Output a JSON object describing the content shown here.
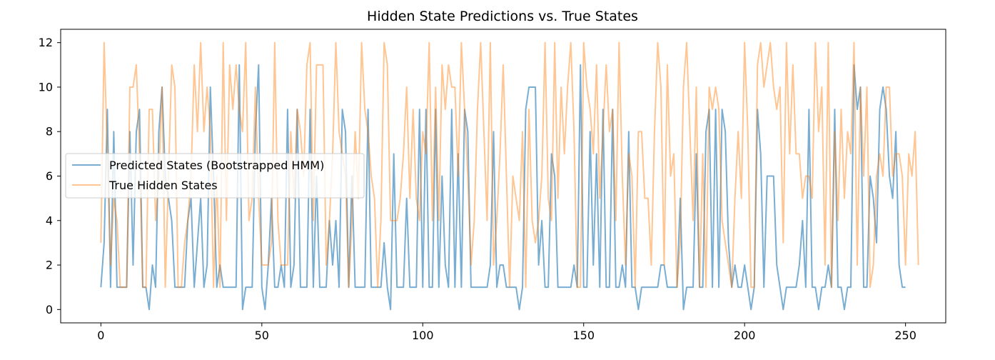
{
  "chart_data": {
    "type": "line",
    "title": "Hidden State Predictions vs. True States",
    "xlabel": "",
    "ylabel": "",
    "xlim": [
      -12.5,
      262.5
    ],
    "ylim": [
      -0.6,
      12.6
    ],
    "xticks": [
      0,
      50,
      100,
      150,
      200,
      250
    ],
    "yticks": [
      0,
      2,
      4,
      6,
      8,
      10,
      12
    ],
    "grid": false,
    "legend": "center-left",
    "series": [
      {
        "name": "Predicted States (Bootstrapped HMM)",
        "color": "#1f77b4",
        "alpha": 0.6,
        "x_start": 0,
        "values": [
          1,
          3,
          9,
          1,
          8,
          1,
          1,
          1,
          1,
          8,
          2,
          8,
          9,
          1,
          1,
          0,
          2,
          1,
          8,
          10,
          6,
          5,
          4,
          1,
          1,
          1,
          1,
          4,
          5,
          1,
          3,
          5,
          1,
          2,
          10,
          6,
          1,
          2,
          1,
          1,
          1,
          1,
          1,
          11,
          0,
          1,
          1,
          1,
          8,
          11,
          1,
          0,
          2,
          5,
          1,
          1,
          2,
          1,
          9,
          1,
          2,
          9,
          1,
          1,
          1,
          9,
          1,
          6,
          1,
          1,
          1,
          4,
          2,
          4,
          1,
          9,
          8,
          1,
          6,
          1,
          1,
          1,
          1,
          9,
          1,
          1,
          1,
          1,
          3,
          1,
          0,
          7,
          1,
          1,
          1,
          5,
          1,
          1,
          1,
          9,
          1,
          9,
          1,
          1,
          9,
          1,
          6,
          2,
          1,
          9,
          1,
          7,
          1,
          9,
          8,
          1,
          1,
          1,
          1,
          1,
          1,
          2,
          8,
          1,
          2,
          2,
          1,
          1,
          1,
          1,
          0,
          1,
          9,
          10,
          10,
          10,
          2,
          4,
          1,
          1,
          7,
          6,
          1,
          1,
          1,
          1,
          1,
          2,
          1,
          11,
          1,
          1,
          8,
          2,
          7,
          1,
          9,
          1,
          1,
          9,
          1,
          1,
          2,
          1,
          8,
          1,
          1,
          0,
          1,
          1,
          1,
          1,
          1,
          1,
          2,
          2,
          1,
          1,
          1,
          1,
          5,
          0,
          1,
          1,
          1,
          7,
          1,
          1,
          8,
          9,
          1,
          9,
          1,
          9,
          8,
          3,
          1,
          2,
          1,
          1,
          2,
          1,
          0,
          1,
          9,
          7,
          1,
          6,
          6,
          6,
          2,
          1,
          0,
          1,
          1,
          1,
          1,
          2,
          4,
          1,
          9,
          1,
          1,
          0,
          1,
          1,
          2,
          1,
          9,
          1,
          1,
          0,
          1,
          1,
          11,
          9,
          10,
          1,
          1,
          6,
          5,
          3,
          9,
          10,
          9,
          6,
          5,
          8,
          2,
          1,
          1
        ]
      },
      {
        "name": "True Hidden States",
        "color": "#ff7f0e",
        "alpha": 0.45,
        "x_start": 0,
        "values": [
          3,
          12,
          7,
          2,
          5,
          4,
          1,
          1,
          1,
          10,
          10,
          11,
          7,
          1,
          1,
          9,
          9,
          4,
          6,
          10,
          1,
          6,
          11,
          10,
          1,
          1,
          3,
          4,
          6,
          11,
          8,
          12,
          8,
          10,
          8,
          1,
          6,
          1,
          12,
          4,
          11,
          9,
          11,
          9,
          8,
          12,
          4,
          5,
          10,
          5,
          2,
          2,
          2,
          3,
          12,
          4,
          2,
          2,
          2,
          8,
          5,
          9,
          8,
          6,
          11,
          12,
          4,
          11,
          11,
          11,
          2,
          4,
          7,
          12,
          8,
          7,
          6,
          1,
          4,
          8,
          5,
          12,
          9,
          8,
          6,
          5,
          1,
          4,
          12,
          11,
          4,
          4,
          4,
          5,
          7,
          10,
          5,
          9,
          5,
          4,
          8,
          7,
          12,
          4,
          10,
          4,
          11,
          9,
          11,
          10,
          10,
          6,
          12,
          9,
          6,
          2,
          4,
          9,
          12,
          8,
          4,
          12,
          2,
          4,
          7,
          11,
          6,
          1,
          6,
          5,
          4,
          8,
          1,
          9,
          4,
          3,
          4,
          6,
          12,
          5,
          4,
          12,
          5,
          10,
          7,
          10,
          12,
          8,
          1,
          1,
          12,
          10,
          9,
          7,
          11,
          5,
          8,
          11,
          8,
          9,
          4,
          12,
          6,
          2,
          7,
          6,
          1,
          8,
          8,
          5,
          5,
          2,
          8,
          12,
          10,
          2,
          11,
          6,
          7,
          1,
          3,
          10,
          12,
          8,
          4,
          10,
          1,
          7,
          1,
          10,
          9,
          10,
          9,
          4,
          3,
          2,
          1,
          5,
          8,
          5,
          12,
          8,
          1,
          1,
          11,
          12,
          10,
          11,
          12,
          10,
          9,
          10,
          3,
          12,
          7,
          11,
          7,
          7,
          5,
          6,
          6,
          5,
          12,
          8,
          10,
          2,
          12,
          1,
          8,
          4,
          9,
          5,
          8,
          7,
          12,
          2,
          10,
          6,
          10,
          1,
          2,
          6,
          7,
          6,
          10,
          10,
          6,
          7,
          7,
          6,
          2,
          7,
          6,
          8,
          2
        ]
      }
    ]
  }
}
